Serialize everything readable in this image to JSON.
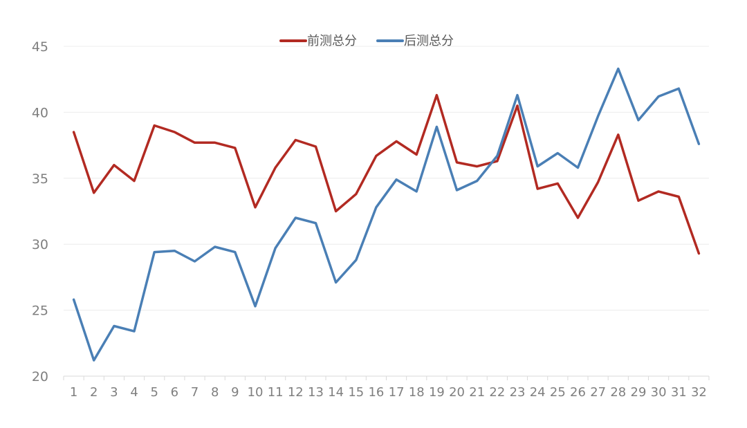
{
  "chart_data": {
    "type": "line",
    "title": "",
    "xlabel": "",
    "ylabel": "",
    "ylim": [
      20,
      45
    ],
    "yticks": [
      20,
      25,
      30,
      35,
      40,
      45
    ],
    "grid": true,
    "legend_position": "top-center",
    "categories": [
      "1",
      "2",
      "3",
      "4",
      "5",
      "6",
      "7",
      "8",
      "9",
      "10",
      "11",
      "12",
      "13",
      "14",
      "15",
      "16",
      "17",
      "18",
      "19",
      "20",
      "21",
      "22",
      "23",
      "24",
      "25",
      "26",
      "27",
      "28",
      "29",
      "30",
      "31",
      "32"
    ],
    "series": [
      {
        "name": "前测总分",
        "color": "#b22a22",
        "values": [
          38.5,
          33.9,
          36.0,
          34.8,
          39.0,
          38.5,
          37.7,
          37.7,
          37.3,
          32.8,
          35.8,
          37.9,
          37.4,
          32.5,
          33.8,
          36.7,
          37.8,
          36.8,
          41.3,
          36.2,
          35.9,
          36.3,
          40.5,
          34.2,
          34.6,
          32.0,
          34.7,
          38.3,
          33.3,
          34.0,
          33.6,
          29.3
        ]
      },
      {
        "name": "后测总分",
        "color": "#4a7fb5",
        "values": [
          25.8,
          21.2,
          23.8,
          23.4,
          29.4,
          29.5,
          28.7,
          29.8,
          29.4,
          25.3,
          29.7,
          32.0,
          31.6,
          27.1,
          28.8,
          32.8,
          34.9,
          34.0,
          38.9,
          34.1,
          34.8,
          36.7,
          41.3,
          35.9,
          36.9,
          35.8,
          39.7,
          43.3,
          39.4,
          41.2,
          41.8,
          37.6
        ]
      }
    ]
  }
}
